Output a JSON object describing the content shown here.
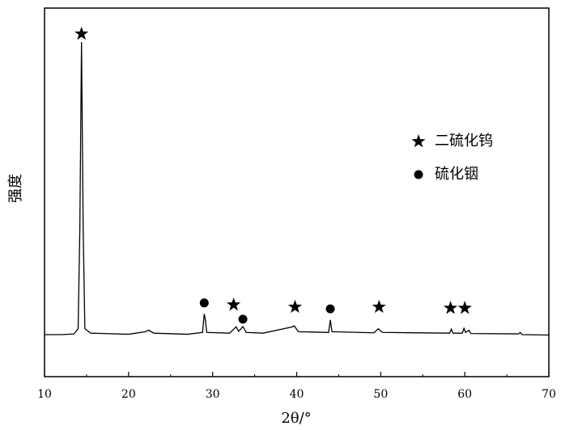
{
  "chart_data": {
    "type": "line",
    "xlabel": "2θ/°",
    "ylabel": "强度",
    "xlim": [
      10,
      70
    ],
    "ylim": [
      0,
      100
    ],
    "xticks": [
      10,
      20,
      30,
      40,
      50,
      60,
      70
    ],
    "xminorticks": [
      15,
      25,
      35,
      45,
      55,
      65
    ],
    "series": [
      {
        "color": "#000000",
        "x": [
          10,
          12,
          13.5,
          14.0,
          14.2,
          14.4,
          14.6,
          14.8,
          15.5,
          20,
          22,
          22.4,
          23,
          27,
          28.8,
          29.0,
          29.1,
          29.3,
          32,
          32.8,
          33.1,
          33.6,
          34,
          36,
          39.5,
          39.7,
          40.2,
          43.8,
          44.0,
          44.2,
          49.2,
          49.7,
          50.2,
          58.2,
          58.4,
          58.6,
          59.7,
          59.9,
          60.1,
          60.5,
          60.7,
          66.4,
          66.6,
          66.8,
          70
        ],
        "values": [
          11.4,
          11.4,
          11.6,
          13,
          40,
          90.8,
          40,
          13,
          11.8,
          11.5,
          12.2,
          12.6,
          11.8,
          11.5,
          12,
          17,
          16,
          12,
          11.8,
          13.5,
          12.3,
          13.6,
          12,
          11.8,
          13.5,
          13.8,
          12.2,
          12,
          15.4,
          12.2,
          11.9,
          13,
          12,
          11.8,
          12.9,
          11.8,
          11.8,
          13.1,
          12,
          12.6,
          11.7,
          11.6,
          12,
          11.4,
          11.3
        ]
      }
    ],
    "markers": [
      {
        "symbol": "star",
        "x": 14.4,
        "y": 93
      },
      {
        "symbol": "circle",
        "x": 29,
        "y": 20
      },
      {
        "symbol": "star",
        "x": 32.5,
        "y": 19.5
      },
      {
        "symbol": "circle",
        "x": 33.6,
        "y": 15.6
      },
      {
        "symbol": "star",
        "x": 39.8,
        "y": 18.9
      },
      {
        "symbol": "circle",
        "x": 44,
        "y": 18.4
      },
      {
        "symbol": "star",
        "x": 49.8,
        "y": 18.9
      },
      {
        "symbol": "star",
        "x": 58.3,
        "y": 18.6
      },
      {
        "symbol": "star",
        "x": 60,
        "y": 18.6
      }
    ],
    "legend": [
      {
        "symbol": "star",
        "label": "二硫化钨"
      },
      {
        "symbol": "circle",
        "label": "硫化铟"
      }
    ]
  }
}
